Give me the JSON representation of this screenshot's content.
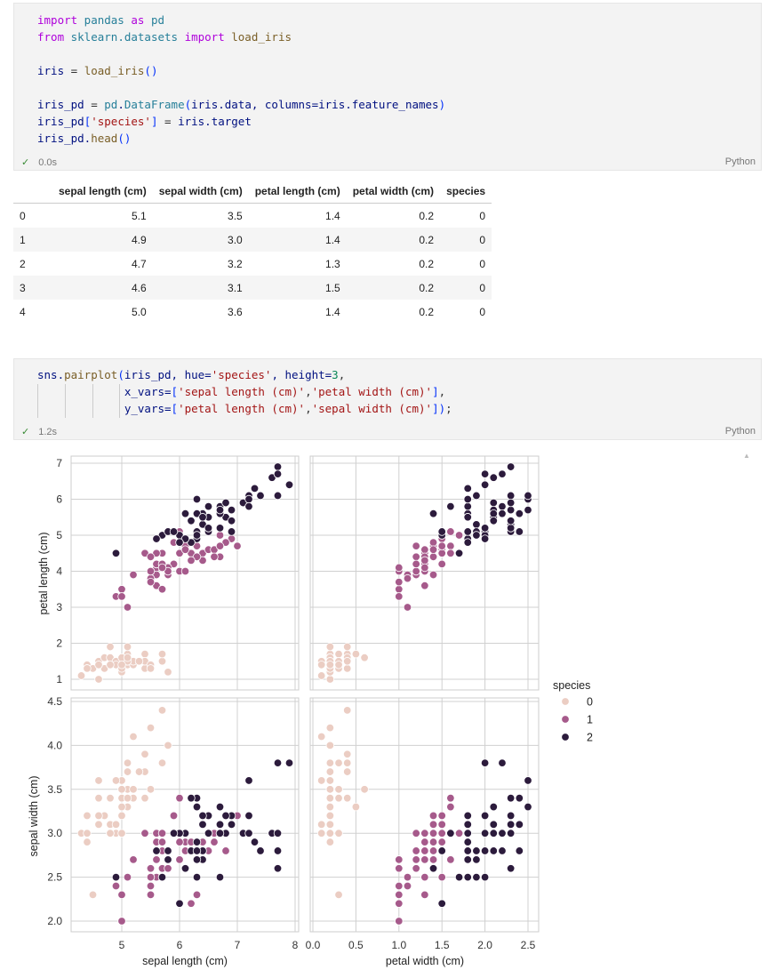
{
  "cell1": {
    "lines": [
      [
        [
          "import",
          "k"
        ],
        [
          " pandas ",
          "m"
        ],
        [
          "as",
          "k"
        ],
        [
          " pd",
          "m"
        ]
      ],
      [
        [
          "from",
          "k"
        ],
        [
          " sklearn.datasets ",
          "m"
        ],
        [
          "import",
          "k"
        ],
        [
          " load_iris",
          "f"
        ]
      ],
      [],
      [
        [
          "iris",
          "v"
        ],
        [
          " = ",
          "o"
        ],
        [
          "load_iris",
          "f"
        ],
        [
          "()",
          "p"
        ]
      ],
      [],
      [
        [
          "iris_pd",
          "v"
        ],
        [
          " = ",
          "o"
        ],
        [
          "pd",
          "m"
        ],
        [
          ".",
          ""
        ],
        [
          "DataFrame",
          "m"
        ],
        [
          "(",
          "p"
        ],
        [
          "iris.data, columns=iris.feature_names",
          "v"
        ],
        [
          ")",
          "p"
        ]
      ],
      [
        [
          "iris_pd",
          "v"
        ],
        [
          "[",
          "p"
        ],
        [
          "'species'",
          "s"
        ],
        [
          "]",
          "p"
        ],
        [
          " = ",
          "o"
        ],
        [
          "iris.target",
          "v"
        ]
      ],
      [
        [
          "iris_pd.",
          "v"
        ],
        [
          "head",
          "f"
        ],
        [
          "()",
          "p"
        ]
      ]
    ],
    "status": "0.0s",
    "lang": "Python"
  },
  "table": {
    "columns": [
      "",
      "sepal length (cm)",
      "sepal width (cm)",
      "petal length (cm)",
      "petal width (cm)",
      "species"
    ],
    "rows": [
      [
        "0",
        "5.1",
        "3.5",
        "1.4",
        "0.2",
        "0"
      ],
      [
        "1",
        "4.9",
        "3.0",
        "1.4",
        "0.2",
        "0"
      ],
      [
        "2",
        "4.7",
        "3.2",
        "1.3",
        "0.2",
        "0"
      ],
      [
        "3",
        "4.6",
        "3.1",
        "1.5",
        "0.2",
        "0"
      ],
      [
        "4",
        "5.0",
        "3.6",
        "1.4",
        "0.2",
        "0"
      ]
    ]
  },
  "cell2": {
    "lines": [
      [
        [
          "sns.",
          "v"
        ],
        [
          "pairplot",
          "f"
        ],
        [
          "(",
          "p"
        ],
        [
          "iris_pd, hue=",
          "v"
        ],
        [
          "'species'",
          "s"
        ],
        [
          ", height=",
          "v"
        ],
        [
          "3",
          "n"
        ],
        [
          ",",
          "o"
        ]
      ],
      [
        [
          "             ",
          ""
        ],
        [
          "x_vars=",
          "v"
        ],
        [
          "[",
          "p"
        ],
        [
          "'sepal length (cm)'",
          "s"
        ],
        [
          ",",
          "o"
        ],
        [
          "'petal width (cm)'",
          "s"
        ],
        [
          "]",
          "p"
        ],
        [
          ",",
          "o"
        ]
      ],
      [
        [
          "             ",
          ""
        ],
        [
          "y_vars=",
          "v"
        ],
        [
          "[",
          "p"
        ],
        [
          "'petal length (cm)'",
          "s"
        ],
        [
          ",",
          "o"
        ],
        [
          "'sepal width (cm)'",
          "s"
        ],
        [
          "]",
          "p"
        ],
        [
          ")",
          "p"
        ],
        [
          ";",
          "o"
        ]
      ]
    ],
    "status": "1.2s",
    "lang": "Python"
  },
  "colors": {
    "0": "#ebcdc3",
    "1": "#a65a8b",
    "2": "#2c1b3c"
  },
  "chart_data": {
    "type": "scatter",
    "kind": "pairplot",
    "hue": "species",
    "x_vars": [
      "sepal length (cm)",
      "petal width (cm)"
    ],
    "y_vars": [
      "petal length (cm)",
      "sepal width (cm)"
    ],
    "ticks": {
      "sepal length (cm)": [
        "5",
        "6",
        "7",
        "8"
      ],
      "petal width (cm)": [
        "0.0",
        "0.5",
        "1.0",
        "1.5",
        "2.0",
        "2.5"
      ],
      "petal length (cm)": [
        "1",
        "2",
        "3",
        "4",
        "5",
        "6",
        "7"
      ],
      "sepal width (cm)": [
        "2.0",
        "2.5",
        "3.0",
        "3.5",
        "4.0",
        "4.5"
      ]
    },
    "legend": {
      "title": "species",
      "entries": [
        "0",
        "1",
        "2"
      ],
      "placement": "right"
    },
    "columns": [
      "sepal length (cm)",
      "sepal width (cm)",
      "petal length (cm)",
      "petal width (cm)"
    ],
    "series": [
      {
        "name": "0",
        "points": [
          [
            5.1,
            3.5,
            1.4,
            0.2
          ],
          [
            4.9,
            3.0,
            1.4,
            0.2
          ],
          [
            4.7,
            3.2,
            1.3,
            0.2
          ],
          [
            4.6,
            3.1,
            1.5,
            0.2
          ],
          [
            5.0,
            3.6,
            1.4,
            0.2
          ],
          [
            5.4,
            3.9,
            1.7,
            0.4
          ],
          [
            4.6,
            3.4,
            1.4,
            0.3
          ],
          [
            5.0,
            3.4,
            1.5,
            0.2
          ],
          [
            4.4,
            2.9,
            1.4,
            0.2
          ],
          [
            4.9,
            3.1,
            1.5,
            0.1
          ],
          [
            5.4,
            3.7,
            1.5,
            0.2
          ],
          [
            4.8,
            3.4,
            1.6,
            0.2
          ],
          [
            4.8,
            3.0,
            1.4,
            0.1
          ],
          [
            4.3,
            3.0,
            1.1,
            0.1
          ],
          [
            5.8,
            4.0,
            1.2,
            0.2
          ],
          [
            5.7,
            4.4,
            1.5,
            0.4
          ],
          [
            5.4,
            3.9,
            1.3,
            0.4
          ],
          [
            5.1,
            3.5,
            1.4,
            0.3
          ],
          [
            5.7,
            3.8,
            1.7,
            0.3
          ],
          [
            5.1,
            3.8,
            1.5,
            0.3
          ],
          [
            5.4,
            3.4,
            1.7,
            0.2
          ],
          [
            5.1,
            3.7,
            1.5,
            0.4
          ],
          [
            4.6,
            3.6,
            1.0,
            0.2
          ],
          [
            5.1,
            3.3,
            1.7,
            0.5
          ],
          [
            4.8,
            3.4,
            1.9,
            0.2
          ],
          [
            5.0,
            3.0,
            1.6,
            0.2
          ],
          [
            5.0,
            3.4,
            1.6,
            0.4
          ],
          [
            5.2,
            3.5,
            1.5,
            0.2
          ],
          [
            5.2,
            3.4,
            1.4,
            0.2
          ],
          [
            4.7,
            3.2,
            1.6,
            0.2
          ],
          [
            4.8,
            3.1,
            1.6,
            0.2
          ],
          [
            5.4,
            3.4,
            1.5,
            0.4
          ],
          [
            5.2,
            4.1,
            1.5,
            0.1
          ],
          [
            5.5,
            4.2,
            1.4,
            0.2
          ],
          [
            4.9,
            3.1,
            1.5,
            0.2
          ],
          [
            5.0,
            3.2,
            1.2,
            0.2
          ],
          [
            5.5,
            3.5,
            1.3,
            0.2
          ],
          [
            4.9,
            3.6,
            1.4,
            0.1
          ],
          [
            4.4,
            3.0,
            1.3,
            0.2
          ],
          [
            5.1,
            3.4,
            1.5,
            0.2
          ],
          [
            5.0,
            3.5,
            1.3,
            0.3
          ],
          [
            4.5,
            2.3,
            1.3,
            0.3
          ],
          [
            4.4,
            3.2,
            1.3,
            0.2
          ],
          [
            5.0,
            3.5,
            1.6,
            0.6
          ],
          [
            5.1,
            3.8,
            1.9,
            0.4
          ],
          [
            4.8,
            3.0,
            1.4,
            0.3
          ],
          [
            5.1,
            3.8,
            1.6,
            0.2
          ],
          [
            4.6,
            3.2,
            1.4,
            0.2
          ],
          [
            5.3,
            3.7,
            1.5,
            0.2
          ],
          [
            5.0,
            3.3,
            1.4,
            0.2
          ]
        ]
      },
      {
        "name": "1",
        "points": [
          [
            7.0,
            3.2,
            4.7,
            1.4
          ],
          [
            6.4,
            3.2,
            4.5,
            1.5
          ],
          [
            6.9,
            3.1,
            4.9,
            1.5
          ],
          [
            5.5,
            2.3,
            4.0,
            1.3
          ],
          [
            6.5,
            2.8,
            4.6,
            1.5
          ],
          [
            5.7,
            2.8,
            4.5,
            1.3
          ],
          [
            6.3,
            3.3,
            4.7,
            1.6
          ],
          [
            4.9,
            2.4,
            3.3,
            1.0
          ],
          [
            6.6,
            2.9,
            4.6,
            1.3
          ],
          [
            5.2,
            2.7,
            3.9,
            1.4
          ],
          [
            5.0,
            2.0,
            3.5,
            1.0
          ],
          [
            5.9,
            3.0,
            4.2,
            1.5
          ],
          [
            6.0,
            2.2,
            4.0,
            1.0
          ],
          [
            6.1,
            2.9,
            4.7,
            1.4
          ],
          [
            5.6,
            2.9,
            3.6,
            1.3
          ],
          [
            6.7,
            3.1,
            4.4,
            1.4
          ],
          [
            5.6,
            3.0,
            4.5,
            1.5
          ],
          [
            5.8,
            2.7,
            4.1,
            1.0
          ],
          [
            6.2,
            2.2,
            4.5,
            1.5
          ],
          [
            5.6,
            2.5,
            3.9,
            1.1
          ],
          [
            5.9,
            3.2,
            4.8,
            1.8
          ],
          [
            6.1,
            2.8,
            4.0,
            1.3
          ],
          [
            6.3,
            2.5,
            4.9,
            1.5
          ],
          [
            6.1,
            2.8,
            4.7,
            1.2
          ],
          [
            6.4,
            2.9,
            4.3,
            1.3
          ],
          [
            6.6,
            3.0,
            4.4,
            1.4
          ],
          [
            6.8,
            2.8,
            4.8,
            1.4
          ],
          [
            6.7,
            3.0,
            5.0,
            1.7
          ],
          [
            6.0,
            2.9,
            4.5,
            1.5
          ],
          [
            5.7,
            2.6,
            3.5,
            1.0
          ],
          [
            5.5,
            2.4,
            3.8,
            1.1
          ],
          [
            5.5,
            2.4,
            3.7,
            1.0
          ],
          [
            5.8,
            2.7,
            3.9,
            1.2
          ],
          [
            6.0,
            2.7,
            5.1,
            1.6
          ],
          [
            5.4,
            3.0,
            4.5,
            1.5
          ],
          [
            6.0,
            3.4,
            4.5,
            1.6
          ],
          [
            6.7,
            3.1,
            4.7,
            1.5
          ],
          [
            6.3,
            2.3,
            4.4,
            1.3
          ],
          [
            5.6,
            3.0,
            4.1,
            1.3
          ],
          [
            5.5,
            2.5,
            4.0,
            1.3
          ],
          [
            5.5,
            2.6,
            4.4,
            1.2
          ],
          [
            6.1,
            3.0,
            4.6,
            1.4
          ],
          [
            5.8,
            2.6,
            4.0,
            1.2
          ],
          [
            5.0,
            2.3,
            3.3,
            1.0
          ],
          [
            5.6,
            2.7,
            4.2,
            1.3
          ],
          [
            5.7,
            3.0,
            4.2,
            1.2
          ],
          [
            5.7,
            2.9,
            4.2,
            1.3
          ],
          [
            6.2,
            2.9,
            4.3,
            1.3
          ],
          [
            5.1,
            2.5,
            3.0,
            1.1
          ],
          [
            5.7,
            2.8,
            4.1,
            1.3
          ]
        ]
      },
      {
        "name": "2",
        "points": [
          [
            6.3,
            3.3,
            6.0,
            2.5
          ],
          [
            5.8,
            2.7,
            5.1,
            1.9
          ],
          [
            7.1,
            3.0,
            5.9,
            2.1
          ],
          [
            6.3,
            2.9,
            5.6,
            1.8
          ],
          [
            6.5,
            3.0,
            5.8,
            2.2
          ],
          [
            7.6,
            3.0,
            6.6,
            2.1
          ],
          [
            4.9,
            2.5,
            4.5,
            1.7
          ],
          [
            7.3,
            2.9,
            6.3,
            1.8
          ],
          [
            6.7,
            2.5,
            5.8,
            1.8
          ],
          [
            7.2,
            3.6,
            6.1,
            2.5
          ],
          [
            6.5,
            3.2,
            5.1,
            2.0
          ],
          [
            6.4,
            2.7,
            5.3,
            1.9
          ],
          [
            6.8,
            3.0,
            5.5,
            2.1
          ],
          [
            5.7,
            2.5,
            5.0,
            2.0
          ],
          [
            5.8,
            2.8,
            5.1,
            2.4
          ],
          [
            6.4,
            3.2,
            5.3,
            2.3
          ],
          [
            6.5,
            3.0,
            5.5,
            1.8
          ],
          [
            7.7,
            3.8,
            6.7,
            2.2
          ],
          [
            7.7,
            2.6,
            6.9,
            2.3
          ],
          [
            6.0,
            2.2,
            5.0,
            1.5
          ],
          [
            6.9,
            3.2,
            5.7,
            2.3
          ],
          [
            5.6,
            2.8,
            4.9,
            2.0
          ],
          [
            7.7,
            2.8,
            6.7,
            2.0
          ],
          [
            6.3,
            2.7,
            4.9,
            1.8
          ],
          [
            6.7,
            3.3,
            5.7,
            2.1
          ],
          [
            7.2,
            3.2,
            6.0,
            1.8
          ],
          [
            6.2,
            2.8,
            4.8,
            1.8
          ],
          [
            6.1,
            3.0,
            4.9,
            1.8
          ],
          [
            6.4,
            2.8,
            5.6,
            2.1
          ],
          [
            7.2,
            3.0,
            5.8,
            1.6
          ],
          [
            7.4,
            2.8,
            6.1,
            1.9
          ],
          [
            7.9,
            3.8,
            6.4,
            2.0
          ],
          [
            6.4,
            2.8,
            5.6,
            2.2
          ],
          [
            6.3,
            2.8,
            5.1,
            1.5
          ],
          [
            6.1,
            2.6,
            5.6,
            1.4
          ],
          [
            7.7,
            3.0,
            6.1,
            2.3
          ],
          [
            6.3,
            3.4,
            5.6,
            2.4
          ],
          [
            6.4,
            3.1,
            5.5,
            1.8
          ],
          [
            6.0,
            3.0,
            4.8,
            1.8
          ],
          [
            6.9,
            3.1,
            5.4,
            2.1
          ],
          [
            6.7,
            3.1,
            5.6,
            2.4
          ],
          [
            6.9,
            3.1,
            5.1,
            2.3
          ],
          [
            5.8,
            2.7,
            5.1,
            1.9
          ],
          [
            6.8,
            3.2,
            5.9,
            2.3
          ],
          [
            6.7,
            3.3,
            5.7,
            2.5
          ],
          [
            6.7,
            3.0,
            5.2,
            2.3
          ],
          [
            6.3,
            2.5,
            5.0,
            1.9
          ],
          [
            6.5,
            3.0,
            5.2,
            2.0
          ],
          [
            6.2,
            3.4,
            5.4,
            2.3
          ],
          [
            5.9,
            3.0,
            5.1,
            1.8
          ]
        ]
      }
    ]
  }
}
